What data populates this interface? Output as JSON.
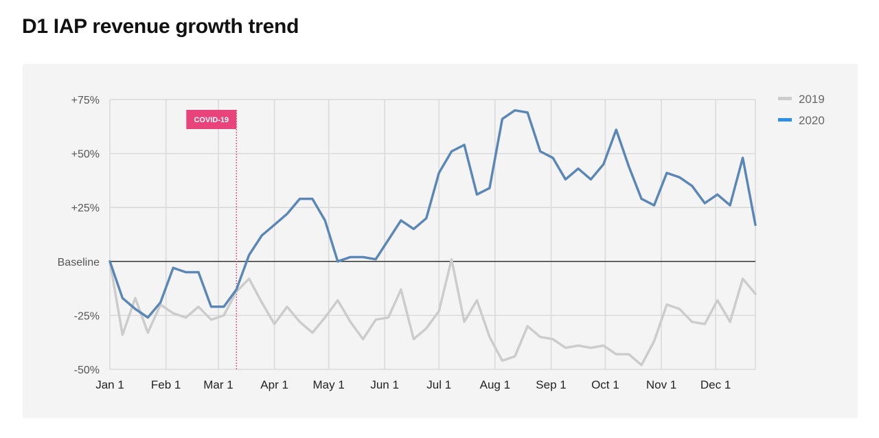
{
  "title": "D1 IAP revenue growth trend",
  "chart_data": {
    "type": "line",
    "title": "D1 IAP revenue growth trend",
    "xlabel": "",
    "ylabel": "",
    "x_unit": "weeks since Jan 1",
    "xlim": [
      0,
      51
    ],
    "ylim": [
      -50,
      75
    ],
    "x_ticks": [
      {
        "label": "Jan 1",
        "x": 0
      },
      {
        "label": "Feb 1",
        "x": 4.43
      },
      {
        "label": "Mar 1",
        "x": 8.57
      },
      {
        "label": "Apr 1",
        "x": 13.0
      },
      {
        "label": "May 1",
        "x": 17.29
      },
      {
        "label": "Jun 1",
        "x": 21.71
      },
      {
        "label": "Jul 1",
        "x": 26.0
      },
      {
        "label": "Aug 1",
        "x": 30.43
      },
      {
        "label": "Sep 1",
        "x": 34.86
      },
      {
        "label": "Oct 1",
        "x": 39.14
      },
      {
        "label": "Nov 1",
        "x": 43.57
      },
      {
        "label": "Dec 1",
        "x": 47.86
      }
    ],
    "y_ticks": [
      {
        "label": "+75%",
        "value": 75
      },
      {
        "label": "+50%",
        "value": 50
      },
      {
        "label": "+25%",
        "value": 25
      },
      {
        "label": "Baseline",
        "value": 0
      },
      {
        "label": "-25%",
        "value": -25
      },
      {
        "label": "-50%",
        "value": -50
      }
    ],
    "grid": true,
    "legend_position": "top-right",
    "series": [
      {
        "name": "2019",
        "color": "#cccccc",
        "values": [
          0,
          -34,
          -17,
          -33,
          -20,
          -24,
          -26,
          -21,
          -27,
          -25,
          -14,
          -8,
          -19,
          -29,
          -21,
          -28,
          -33,
          -26,
          -18,
          -28,
          -36,
          -27,
          -26,
          -13,
          -36,
          -31,
          -23,
          1,
          -28,
          -18,
          -35,
          -46,
          -44,
          -30,
          -35,
          -36,
          -40,
          -39,
          -40,
          -39,
          -43,
          -43,
          -48,
          -37,
          -20,
          -22,
          -28,
          -29,
          -18,
          -28,
          -8,
          -15
        ]
      },
      {
        "name": "2020",
        "color": "#5b87b7",
        "values": [
          0,
          -17,
          -22,
          -26,
          -19,
          -3,
          -5,
          -5,
          -21,
          -21,
          -13,
          3,
          12,
          17,
          22,
          29,
          29,
          19,
          0,
          2,
          2,
          1,
          10,
          19,
          15,
          20,
          41,
          51,
          54,
          31,
          34,
          66,
          70,
          69,
          51,
          48,
          38,
          43,
          38,
          45,
          61,
          44,
          29,
          26,
          41,
          39,
          35,
          27,
          31,
          26,
          48,
          17
        ]
      }
    ],
    "annotations": [
      {
        "label": "COVID-19",
        "x": 10.0,
        "color": "#e8437a"
      }
    ]
  }
}
